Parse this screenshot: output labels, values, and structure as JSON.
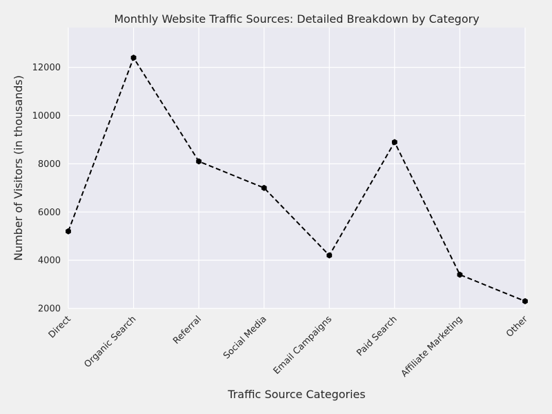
{
  "chart_data": {
    "type": "line",
    "title": "Monthly Website Traffic Sources: Detailed Breakdown by Category",
    "xlabel": "Traffic Source Categories",
    "ylabel": "Number of Visitors (in thousands)",
    "categories": [
      "Direct",
      "Organic Search",
      "Referral",
      "Social Media",
      "Email Campaigns",
      "Paid Search",
      "Affiliate Marketing",
      "Other"
    ],
    "series": [
      {
        "values": [
          5200,
          12400,
          8100,
          7000,
          4200,
          8900,
          3400,
          2300
        ]
      }
    ],
    "ylim": [
      2000,
      13650
    ],
    "yticks": [
      2000,
      4000,
      6000,
      8000,
      10000,
      12000
    ],
    "ytick_labels": [
      "2000",
      "4000",
      "6000",
      "8000",
      "10000",
      "12000"
    ],
    "grid": true,
    "line_style": "dashed",
    "marker": "hexagon",
    "colors": {
      "line": "#000000",
      "plot_background": "#e9e9f1",
      "figure_background": "#f0f0f0",
      "grid": "#ffffff",
      "text": "#262626"
    }
  }
}
